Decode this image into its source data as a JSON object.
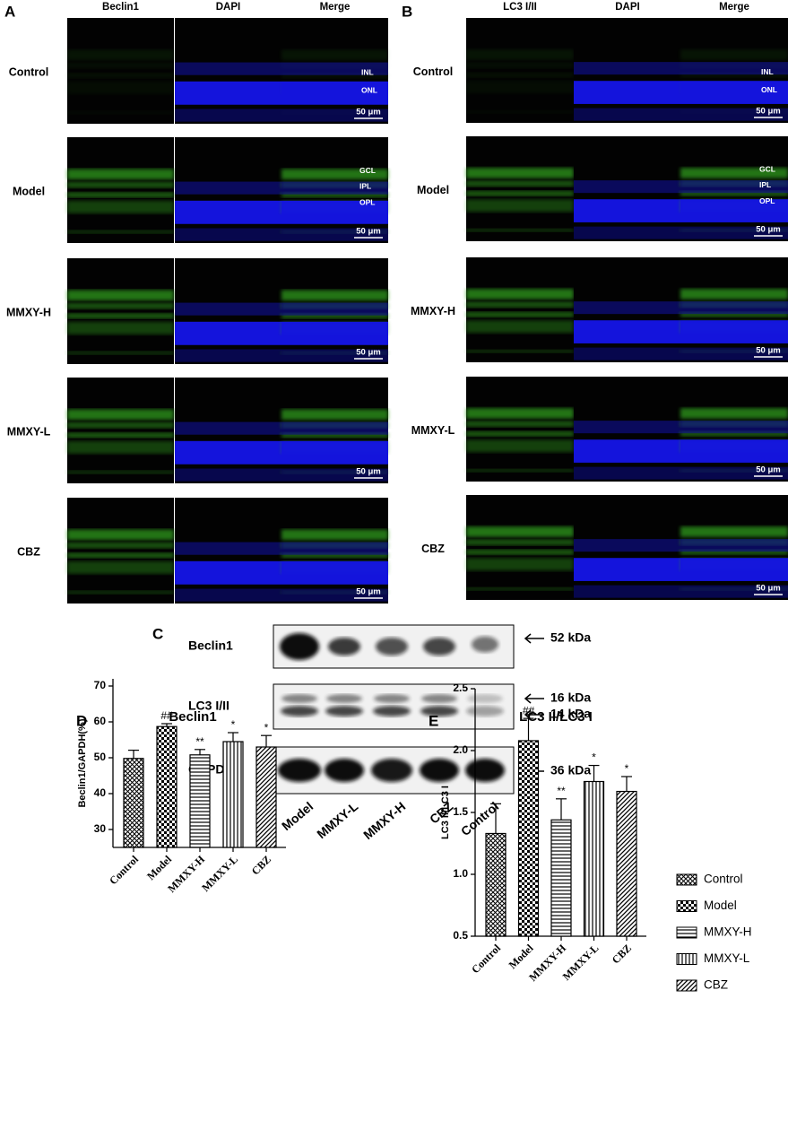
{
  "figure": {
    "panel_a": {
      "letter": "A",
      "columns": [
        "Beclin1",
        "DAPI",
        "Merge"
      ],
      "rows": [
        "Control",
        "Model",
        "MMXY-H",
        "MMXY-L",
        "CBZ"
      ]
    },
    "panel_b": {
      "letter": "B",
      "columns": [
        "LC3 I/II",
        "DAPI",
        "Merge"
      ],
      "rows": [
        "Control",
        "Model",
        "MMXY-H",
        "MMXY-L",
        "CBZ"
      ]
    },
    "layers_control": [
      "INL",
      "ONL"
    ],
    "layers_model": [
      "GCL",
      "IPL",
      "OPL"
    ],
    "scale_bar": "50 μm",
    "panel_c": {
      "letter": "C",
      "proteins": [
        "Beclin1",
        "LC3 I/II",
        "GAPDH"
      ],
      "weights": [
        "52 kDa",
        "16 kDa",
        "14 kDa",
        "36 kDa"
      ],
      "lanes": [
        "Model",
        "MMXY-L",
        "MMXY-H",
        "CBZ",
        "Control"
      ]
    }
  },
  "chart_data": [
    {
      "letter": "D",
      "type": "bar",
      "title": "Beclin1",
      "y_label": "Beclin1/GAPDH(%)",
      "categories": [
        "Control",
        "Model",
        "MMXY-H",
        "MMXY-L",
        "CBZ"
      ],
      "values": [
        49.8,
        58.7,
        50.8,
        54.5,
        53.0
      ],
      "errors": [
        2.3,
        0.8,
        1.5,
        2.5,
        3.2
      ],
      "annotations": [
        null,
        "##",
        "**",
        "*",
        "*"
      ],
      "patterns": [
        "crosshatch",
        "checker",
        "horizontal",
        "vertical",
        "diagonal"
      ],
      "ylim": [
        25,
        72
      ],
      "yticks": [
        30,
        40,
        50,
        60,
        70
      ]
    },
    {
      "letter": "E",
      "type": "bar",
      "title": "LC3 II/LC3 I",
      "y_label": "LC3 II/LC3 I",
      "categories": [
        "Control",
        "Model",
        "MMXY-H",
        "MMXY-L",
        "CBZ"
      ],
      "values": [
        1.33,
        2.08,
        1.44,
        1.75,
        1.67
      ],
      "errors": [
        0.24,
        0.18,
        0.17,
        0.13,
        0.12
      ],
      "annotations": [
        null,
        "##",
        "**",
        "*",
        "*"
      ],
      "patterns": [
        "crosshatch",
        "checker",
        "horizontal",
        "vertical",
        "diagonal"
      ],
      "ylim": [
        0.5,
        2.5
      ],
      "yticks": [
        0.5,
        {
          "value": 1.0,
          "label": "1.0"
        },
        1.5,
        {
          "value": 2.0,
          "label": "2.0"
        },
        2.5
      ],
      "legend": "right"
    }
  ]
}
